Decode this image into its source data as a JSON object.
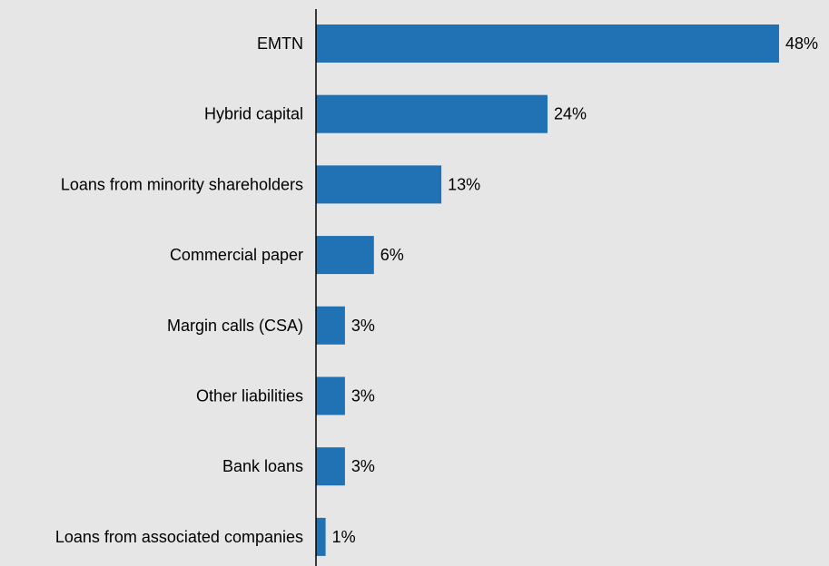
{
  "chart_data": {
    "type": "bar",
    "orientation": "horizontal",
    "title": "",
    "xlabel": "",
    "ylabel": "",
    "categories": [
      "EMTN",
      "Hybrid capital",
      "Loans from minority shareholders",
      "Commercial paper",
      "Margin calls (CSA)",
      "Other liabilities",
      "Bank loans",
      "Loans from associated companies"
    ],
    "values": [
      48,
      24,
      13,
      6,
      3,
      3,
      3,
      1
    ],
    "value_labels": [
      "48%",
      "24%",
      "13%",
      "6%",
      "3%",
      "3%",
      "3%",
      "1%"
    ],
    "unit": "%",
    "xlim": [
      0,
      48
    ],
    "grid": false,
    "legend": "none",
    "colors": {
      "bar": "#2171b5",
      "axis": "#000000",
      "background": "#e6e6e6"
    }
  }
}
